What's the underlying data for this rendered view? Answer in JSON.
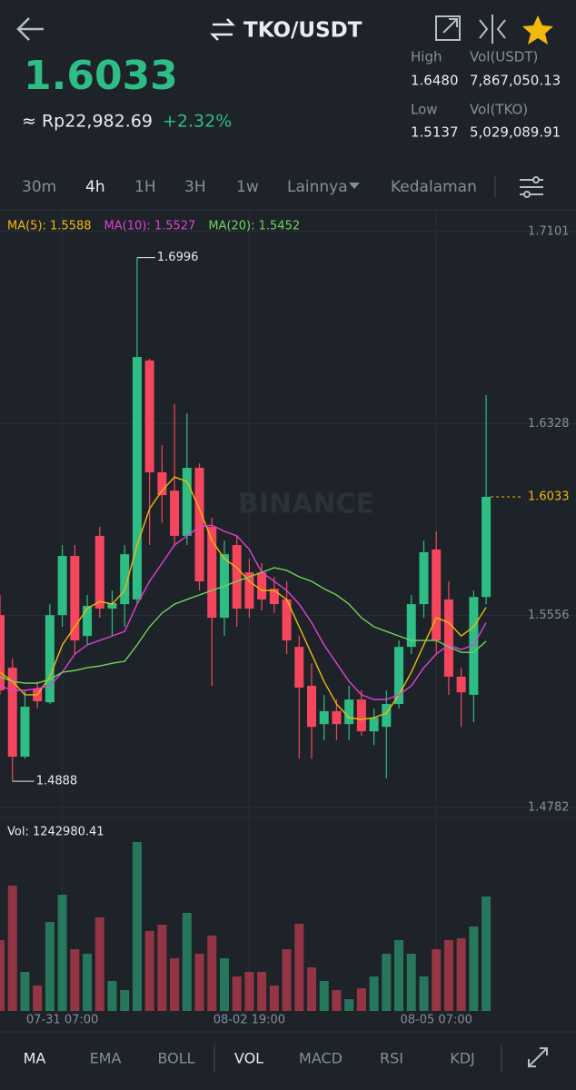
{
  "header": {
    "pair": "TKO/USDT",
    "price": "1.6033",
    "fiat": "≈ Rp22,982.69",
    "change": "+2.32%",
    "stats": [
      {
        "label": "High",
        "value": "1.6480"
      },
      {
        "label": "Vol(USDT)",
        "value": "7,867,050.13"
      },
      {
        "label": "Low",
        "value": "1.5137"
      },
      {
        "label": "Vol(TKO)",
        "value": "5,029,089.91"
      }
    ]
  },
  "intervals": [
    "30m",
    "4h",
    "1H",
    "3H",
    "1w",
    "Lainnya",
    "Kedalaman"
  ],
  "indicators": [
    "MA",
    "EMA",
    "BOLL",
    "VOL",
    "MACD",
    "RSI",
    "KDJ"
  ],
  "chart_data": {
    "type": "candlestick",
    "categories": [
      null,
      null,
      null,
      null,
      null,
      "07-31 07:00",
      null,
      null,
      null,
      null,
      null,
      null,
      null,
      null,
      null,
      null,
      null,
      null,
      null,
      null,
      "08-02 19:00",
      null,
      null,
      null,
      null,
      null,
      null,
      null,
      null,
      null,
      null,
      null,
      null,
      null,
      null,
      "08-05 07:00",
      null,
      null,
      null,
      null
    ],
    "open": [
      1.5557,
      1.5345,
      1.4987,
      1.5261,
      1.5206,
      1.5557,
      1.5795,
      1.5473,
      1.5876,
      1.5583,
      1.5601,
      1.562,
      1.6582,
      1.6132,
      1.6058,
      1.5876,
      1.615,
      1.5912,
      1.5546,
      1.5839,
      1.5729,
      1.5729,
      1.5663,
      1.562,
      1.5429,
      1.5272,
      1.5118,
      1.517,
      1.5118,
      1.5217,
      1.5089,
      1.5107,
      1.5199,
      1.5429,
      1.5601,
      1.5821,
      1.562,
      1.5309,
      1.5236,
      1.563
    ],
    "close": [
      1.5254,
      1.4987,
      1.5188,
      1.521,
      1.5557,
      1.5795,
      1.5455,
      1.5594,
      1.5583,
      1.5605,
      1.5802,
      1.6596,
      1.6132,
      1.604,
      1.5876,
      1.615,
      1.5693,
      1.5546,
      1.5802,
      1.5583,
      1.5583,
      1.562,
      1.5601,
      1.5455,
      1.5265,
      1.5107,
      1.517,
      1.5118,
      1.5217,
      1.5089,
      1.5144,
      1.5199,
      1.5429,
      1.5601,
      1.581,
      1.5455,
      1.5309,
      1.5246,
      1.563,
      1.6033
    ],
    "high": [
      1.5638,
      1.5382,
      1.5254,
      1.529,
      1.5601,
      1.5839,
      1.5839,
      1.5638,
      1.5912,
      1.5656,
      1.5839,
      1.6996,
      1.6589,
      1.6241,
      1.6406,
      1.6369,
      1.6168,
      1.5949,
      1.5857,
      1.5876,
      1.5784,
      1.5766,
      1.5711,
      1.5693,
      1.5473,
      1.5363,
      1.5235,
      1.5217,
      1.5272,
      1.5254,
      1.5181,
      1.5254,
      1.5455,
      1.5638,
      1.5857,
      1.5894,
      1.5693,
      1.5345,
      1.5656,
      1.6443
    ],
    "low": [
      1.5236,
      1.4888,
      1.4979,
      1.5181,
      1.5199,
      1.551,
      1.54,
      1.5437,
      1.5546,
      1.5473,
      1.551,
      1.5601,
      1.5839,
      1.593,
      1.5839,
      1.5839,
      1.5656,
      1.5272,
      1.5473,
      1.551,
      1.5546,
      1.5576,
      1.5565,
      1.54,
      1.4979,
      1.4979,
      1.5053,
      1.5053,
      1.5053,
      1.5071,
      1.5034,
      1.49,
      1.5181,
      1.54,
      1.5546,
      1.54,
      1.5236,
      1.5107,
      1.5126,
      1.5601
    ],
    "up_color": "#2ebd85",
    "down_color": "#f6465d",
    "ylim": [
      1.4742,
      1.7185
    ],
    "yticks": [
      1.7101,
      1.6328,
      1.5556,
      1.4782
    ],
    "grid": true,
    "watermark": "BINANCE",
    "max_label": 1.6996,
    "min_label": 1.4888,
    "series": [
      {
        "name": "MA(5): 1.5588",
        "color": "#f0b90b",
        "values": [
          1.5327,
          1.529,
          1.5236,
          1.5236,
          1.5309,
          1.5437,
          1.551,
          1.5583,
          1.5612,
          1.5601,
          1.5656,
          1.5839,
          1.5985,
          1.6058,
          1.6113,
          1.6095,
          1.5985,
          1.5857,
          1.5784,
          1.5748,
          1.5693,
          1.5656,
          1.5656,
          1.562,
          1.551,
          1.54,
          1.529,
          1.5199,
          1.5144,
          1.5137,
          1.5144,
          1.5162,
          1.5236,
          1.5327,
          1.5437,
          1.5546,
          1.5527,
          1.5473,
          1.551,
          1.5588
        ]
      },
      {
        "name": "MA(10): 1.5527",
        "color": "#e040d0",
        "values": [
          1.5272,
          1.5254,
          1.5254,
          1.5261,
          1.5272,
          1.5327,
          1.54,
          1.5437,
          1.5455,
          1.5473,
          1.5491,
          1.5601,
          1.5693,
          1.5766,
          1.5839,
          1.5876,
          1.5912,
          1.5919,
          1.5894,
          1.5876,
          1.5821,
          1.5729,
          1.5693,
          1.5656,
          1.5601,
          1.5527,
          1.5437,
          1.5363,
          1.529,
          1.5236,
          1.5217,
          1.5217,
          1.5236,
          1.5272,
          1.5345,
          1.54,
          1.5437,
          1.5418,
          1.5437,
          1.5527
        ]
      },
      {
        "name": "MA(20): 1.5452",
        "color": "#6fd35a",
        "values": [
          1.5309,
          1.529,
          1.5283,
          1.5283,
          1.5298,
          1.5327,
          1.5334,
          1.5345,
          1.5352,
          1.5363,
          1.5371,
          1.5437,
          1.551,
          1.5565,
          1.5601,
          1.562,
          1.5638,
          1.5656,
          1.5674,
          1.5693,
          1.5711,
          1.5729,
          1.5748,
          1.5737,
          1.5711,
          1.5693,
          1.5663,
          1.5638,
          1.5601,
          1.5546,
          1.551,
          1.5491,
          1.5473,
          1.5455,
          1.5455,
          1.5455,
          1.5429,
          1.5407,
          1.5407,
          1.5452
        ]
      }
    ],
    "volume": {
      "title": "Vol: 1242980.41",
      "ylim": [
        0,
        1904000
      ],
      "values": [
        769500,
        1361400,
        424200,
        276200,
        966800,
        1262700,
        670800,
        621500,
        1016100,
        325500,
        226900,
        1834900,
        868100,
        937200,
        572200,
        1065400,
        621500,
        818800,
        572200,
        374900,
        424200,
        424200,
        276200,
        670800,
        947000,
        473500,
        325500,
        226900,
        128200,
        246600,
        374900,
        621500,
        769500,
        621500,
        374900,
        670800,
        769500,
        789200,
        917400,
        1242980.41
      ]
    }
  }
}
